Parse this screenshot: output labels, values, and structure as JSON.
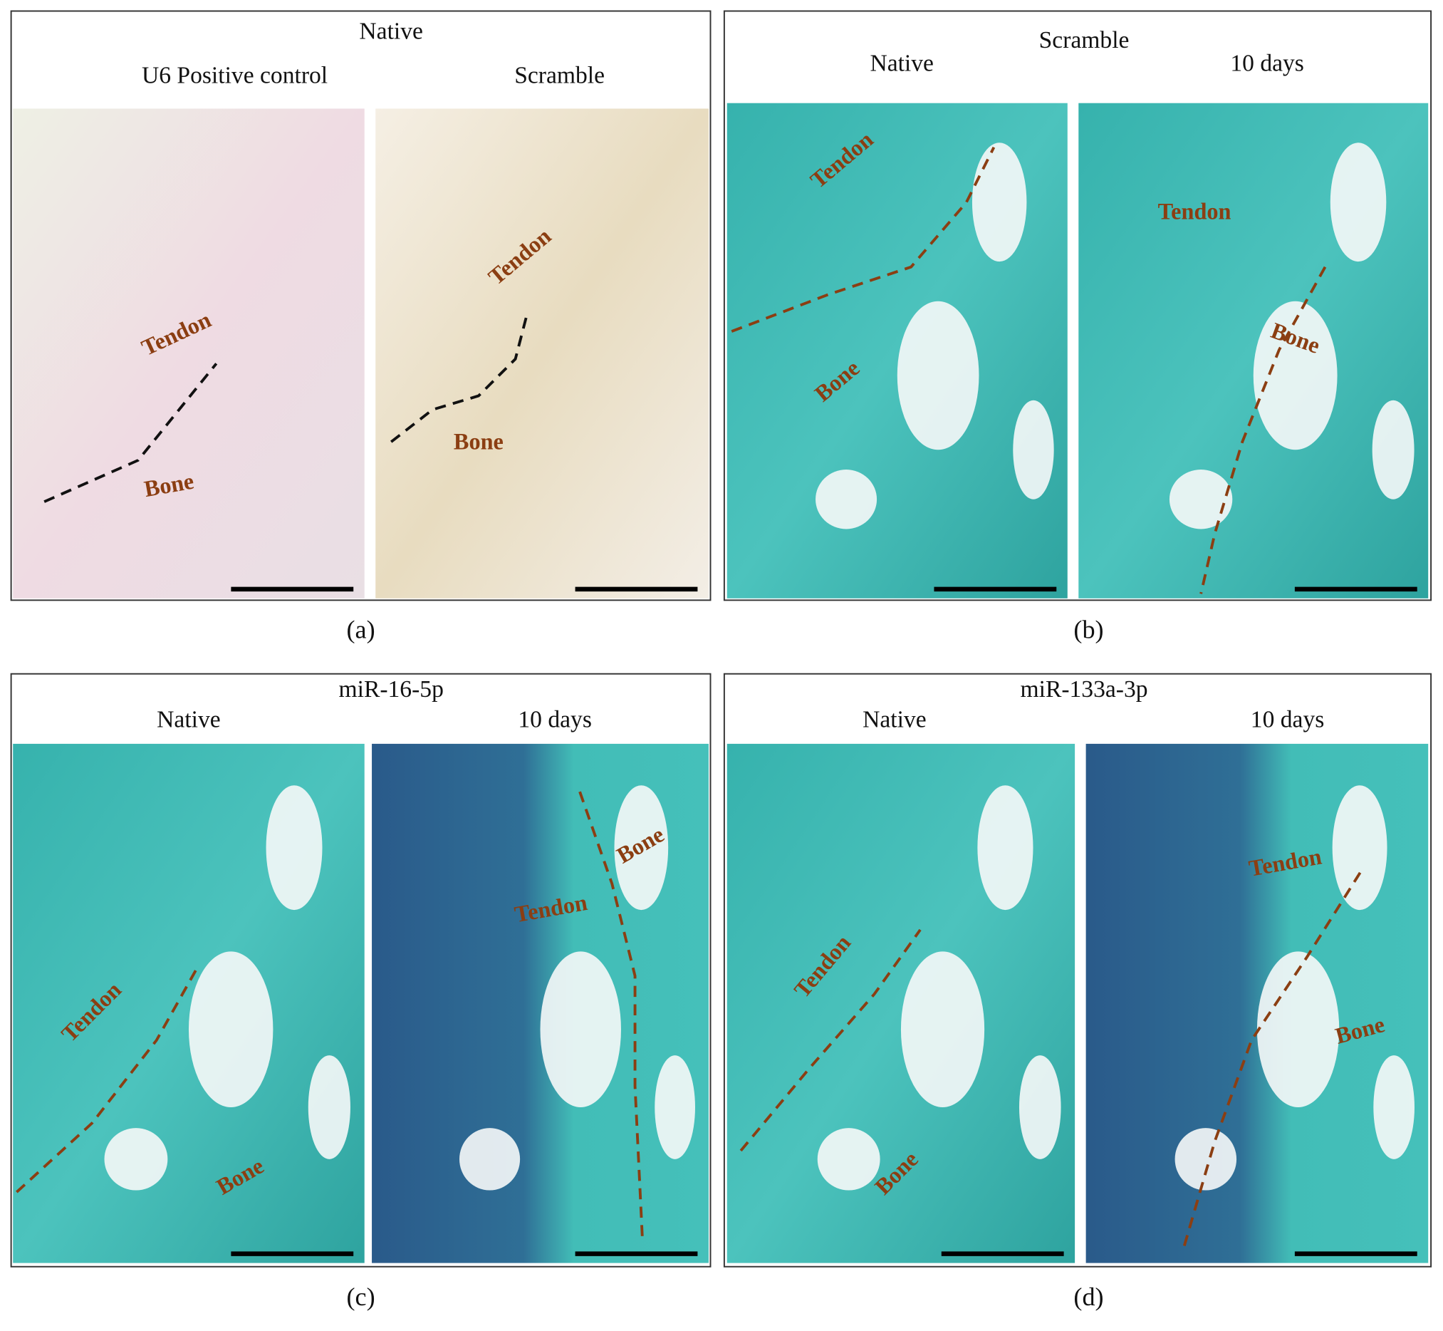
{
  "panels": [
    {
      "caption": "(a)",
      "title": "Native",
      "images": [
        {
          "caption": "U6 Positive control",
          "labels": [
            "Tendon",
            "Bone"
          ]
        },
        {
          "caption": "Scramble",
          "labels": [
            "Tendon",
            "Bone"
          ]
        }
      ]
    },
    {
      "caption": "(b)",
      "title": "Scramble",
      "images": [
        {
          "caption": "Native",
          "labels": [
            "Tendon",
            "Bone"
          ]
        },
        {
          "caption": "10 days",
          "labels": [
            "Tendon",
            "Bone"
          ]
        }
      ]
    },
    {
      "caption": "(c)",
      "title": "miR-16-5p",
      "images": [
        {
          "caption": "Native",
          "labels": [
            "Tendon",
            "Bone"
          ]
        },
        {
          "caption": "10 days",
          "labels": [
            "Bone",
            "Tendon"
          ]
        }
      ]
    },
    {
      "caption": "(d)",
      "title": "miR-133a-3p",
      "images": [
        {
          "caption": "Native",
          "labels": [
            "Tendon",
            "Bone"
          ]
        },
        {
          "caption": "10 days",
          "labels": [
            "Tendon",
            "Bone"
          ]
        }
      ]
    }
  ]
}
